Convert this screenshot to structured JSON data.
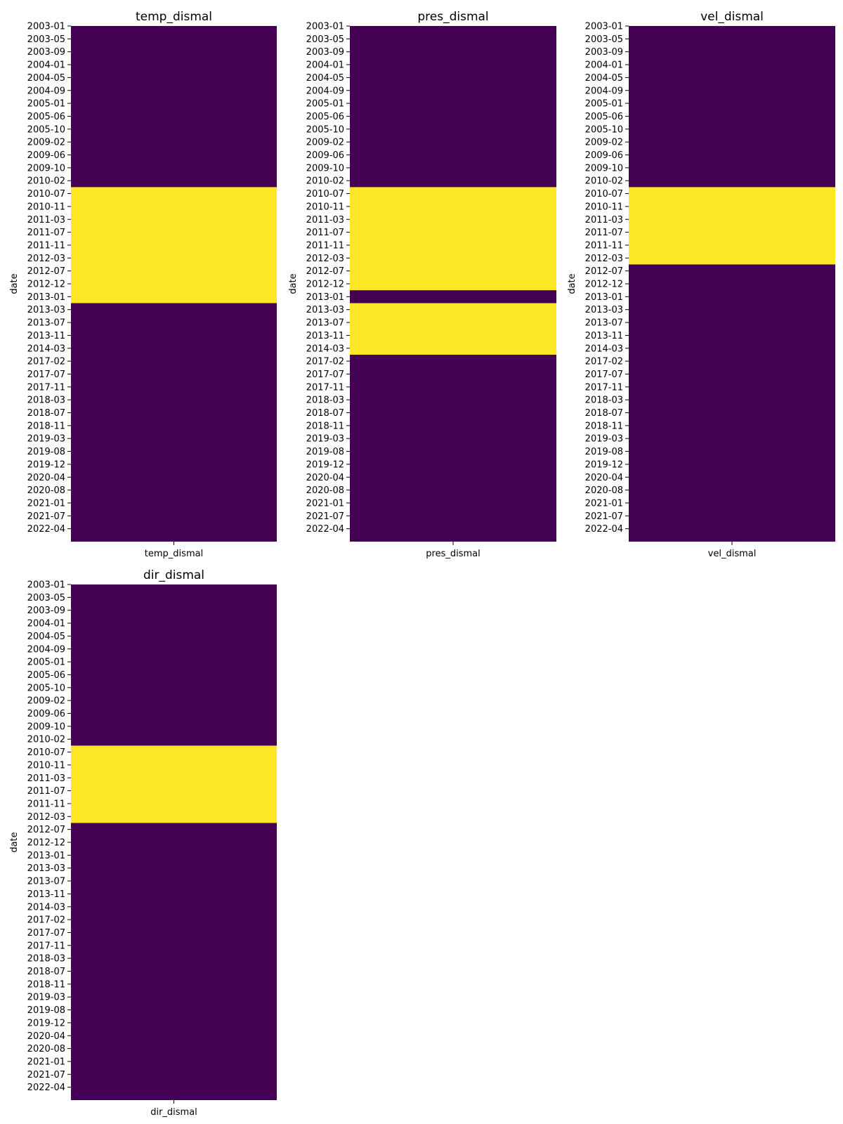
{
  "colors": {
    "missing": "#fde725",
    "present": "#440154"
  },
  "chart_data": [
    {
      "type": "heatmap",
      "title": "temp_dismal",
      "xlabel": "temp_dismal",
      "ylabel": "date",
      "y_tick_labels": [
        "2003-01",
        "2003-05",
        "2003-09",
        "2004-01",
        "2004-05",
        "2004-09",
        "2005-01",
        "2005-06",
        "2005-10",
        "2009-02",
        "2009-06",
        "2009-10",
        "2010-02",
        "2010-07",
        "2010-11",
        "2011-03",
        "2011-07",
        "2011-11",
        "2012-03",
        "2012-07",
        "2012-12",
        "2013-01",
        "2013-03",
        "2013-07",
        "2013-11",
        "2014-03",
        "2017-02",
        "2017-07",
        "2017-11",
        "2018-03",
        "2018-07",
        "2018-11",
        "2019-03",
        "2019-08",
        "2019-12",
        "2020-04",
        "2020-08",
        "2021-01",
        "2021-07",
        "2022-04"
      ],
      "highlighted_ranges": [
        {
          "start": "2010-02",
          "end": "2013-01"
        }
      ]
    },
    {
      "type": "heatmap",
      "title": "pres_dismal",
      "xlabel": "pres_dismal",
      "ylabel": "date",
      "y_tick_labels": [
        "2003-01",
        "2003-05",
        "2003-09",
        "2004-01",
        "2004-05",
        "2004-09",
        "2005-01",
        "2005-06",
        "2005-10",
        "2009-02",
        "2009-06",
        "2009-10",
        "2010-02",
        "2010-07",
        "2010-11",
        "2011-03",
        "2011-07",
        "2011-11",
        "2012-03",
        "2012-07",
        "2012-12",
        "2013-01",
        "2013-03",
        "2013-07",
        "2013-11",
        "2014-03",
        "2017-02",
        "2017-07",
        "2017-11",
        "2018-03",
        "2018-07",
        "2018-11",
        "2019-03",
        "2019-08",
        "2019-12",
        "2020-04",
        "2020-08",
        "2021-01",
        "2021-07",
        "2022-04"
      ],
      "highlighted_ranges": [
        {
          "start": "2010-02",
          "end": "2012-12"
        },
        {
          "start": "2013-01",
          "end": "2014-03"
        }
      ]
    },
    {
      "type": "heatmap",
      "title": "vel_dismal",
      "xlabel": "vel_dismal",
      "ylabel": "date",
      "y_tick_labels": [
        "2003-01",
        "2003-05",
        "2003-09",
        "2004-01",
        "2004-05",
        "2004-09",
        "2005-01",
        "2005-06",
        "2005-10",
        "2009-02",
        "2009-06",
        "2009-10",
        "2010-02",
        "2010-07",
        "2010-11",
        "2011-03",
        "2011-07",
        "2011-11",
        "2012-03",
        "2012-07",
        "2012-12",
        "2013-01",
        "2013-03",
        "2013-07",
        "2013-11",
        "2014-03",
        "2017-02",
        "2017-07",
        "2017-11",
        "2018-03",
        "2018-07",
        "2018-11",
        "2019-03",
        "2019-08",
        "2019-12",
        "2020-04",
        "2020-08",
        "2021-01",
        "2021-07",
        "2022-04"
      ],
      "highlighted_ranges": [
        {
          "start": "2010-02",
          "end": "2012-03"
        }
      ]
    },
    {
      "type": "heatmap",
      "title": "dir_dismal",
      "xlabel": "dir_dismal",
      "ylabel": "date",
      "y_tick_labels": [
        "2003-01",
        "2003-05",
        "2003-09",
        "2004-01",
        "2004-05",
        "2004-09",
        "2005-01",
        "2005-06",
        "2005-10",
        "2009-02",
        "2009-06",
        "2009-10",
        "2010-02",
        "2010-07",
        "2010-11",
        "2011-03",
        "2011-07",
        "2011-11",
        "2012-03",
        "2012-07",
        "2012-12",
        "2013-01",
        "2013-03",
        "2013-07",
        "2013-11",
        "2014-03",
        "2017-02",
        "2017-07",
        "2017-11",
        "2018-03",
        "2018-07",
        "2018-11",
        "2019-03",
        "2019-08",
        "2019-12",
        "2020-04",
        "2020-08",
        "2021-01",
        "2021-07",
        "2022-04"
      ],
      "highlighted_ranges": [
        {
          "start": "2010-02",
          "end": "2012-03"
        }
      ]
    }
  ]
}
